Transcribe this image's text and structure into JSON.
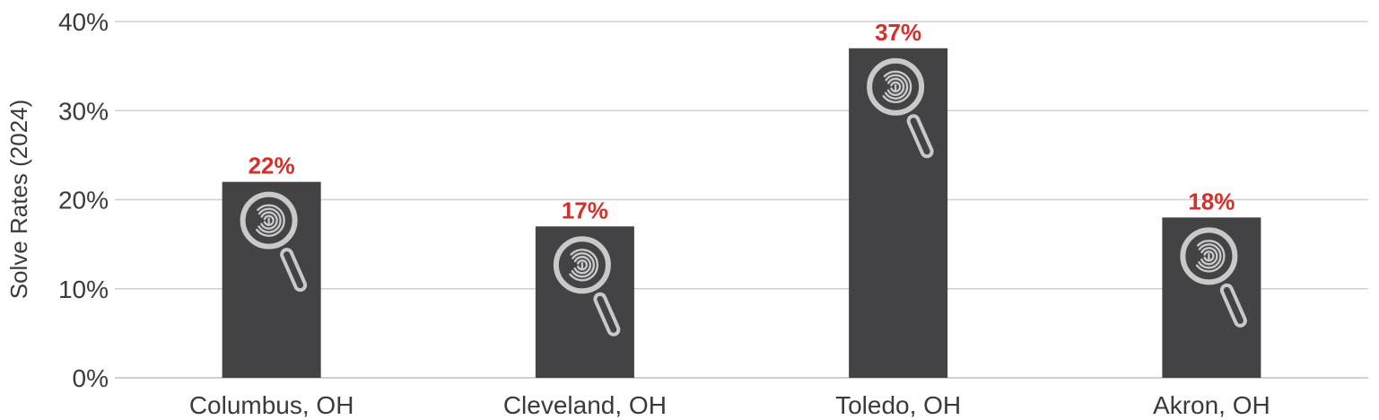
{
  "chart_data": {
    "type": "bar",
    "categories": [
      "Columbus, OH",
      "Cleveland, OH",
      "Toledo, OH",
      "Akron, OH"
    ],
    "values": [
      22,
      17,
      37,
      18
    ],
    "value_labels": [
      "22%",
      "17%",
      "37%",
      "18%"
    ],
    "title": "",
    "xlabel": "",
    "ylabel": "Solve Rates (2024)",
    "ylim": [
      0,
      40
    ],
    "yticks": [
      0,
      10,
      20,
      30,
      40
    ],
    "ytick_labels": [
      "0%",
      "10%",
      "20%",
      "30%",
      "40%"
    ],
    "grid": "horizontal",
    "legend": "none",
    "bar_icon": "magnifying-glass-fingerprint-icon",
    "colors": {
      "bar": "#434244",
      "data_label": "#d5302b",
      "icon": "#c9c9c9",
      "grid": "#d0d0d0",
      "text": "#3a3a3c"
    }
  }
}
